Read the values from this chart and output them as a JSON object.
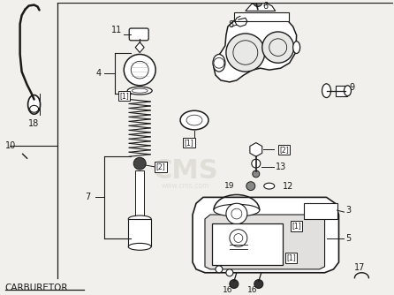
{
  "title": "CARBURETOR",
  "bg_color": "#f2f0ec",
  "line_color": "#1a1a1a",
  "text_color": "#1a1a1a",
  "watermark_color": "#c8c4bc",
  "figsize": [
    4.46,
    3.34
  ],
  "dpi": 100
}
